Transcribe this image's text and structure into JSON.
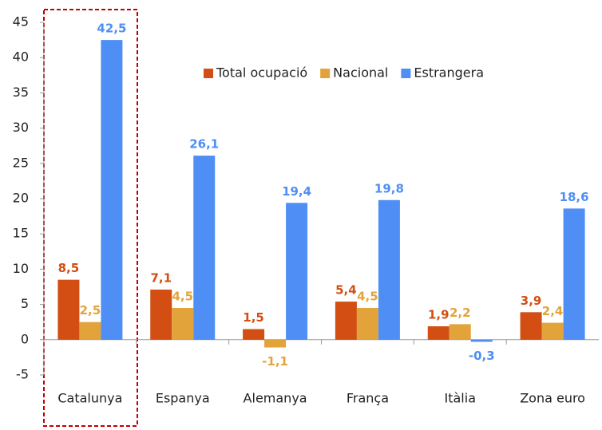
{
  "chart_data": {
    "type": "bar",
    "categories": [
      "Catalunya",
      "Espanya",
      "Alemanya",
      "França",
      "Itàlia",
      "Zona euro"
    ],
    "series": [
      {
        "name": "Total ocupació",
        "color": "#d24e13",
        "values": [
          8.5,
          7.1,
          1.5,
          5.4,
          1.9,
          3.9
        ],
        "value_labels": [
          "8,5",
          "7,1",
          "1,5",
          "5,4",
          "1,9",
          "3,9"
        ]
      },
      {
        "name": "Nacional",
        "color": "#e3a33b",
        "values": [
          2.5,
          4.5,
          -1.1,
          4.5,
          2.2,
          2.4
        ],
        "value_labels": [
          "2,5",
          "4,5",
          "-1,1",
          "4,5",
          "2,2",
          "2,4"
        ]
      },
      {
        "name": "Estrangera",
        "color": "#4f8ff5",
        "values": [
          42.5,
          26.1,
          19.4,
          19.8,
          -0.3,
          18.6
        ],
        "value_labels": [
          "42,5",
          "26,1",
          "19,4",
          "19,8",
          "-0,3",
          "18,6"
        ]
      }
    ],
    "ylim": [
      -5,
      45
    ],
    "yticks": [
      -5,
      0,
      5,
      10,
      15,
      20,
      25,
      30,
      35,
      40,
      45
    ],
    "grid": false,
    "legend": "upper right"
  }
}
